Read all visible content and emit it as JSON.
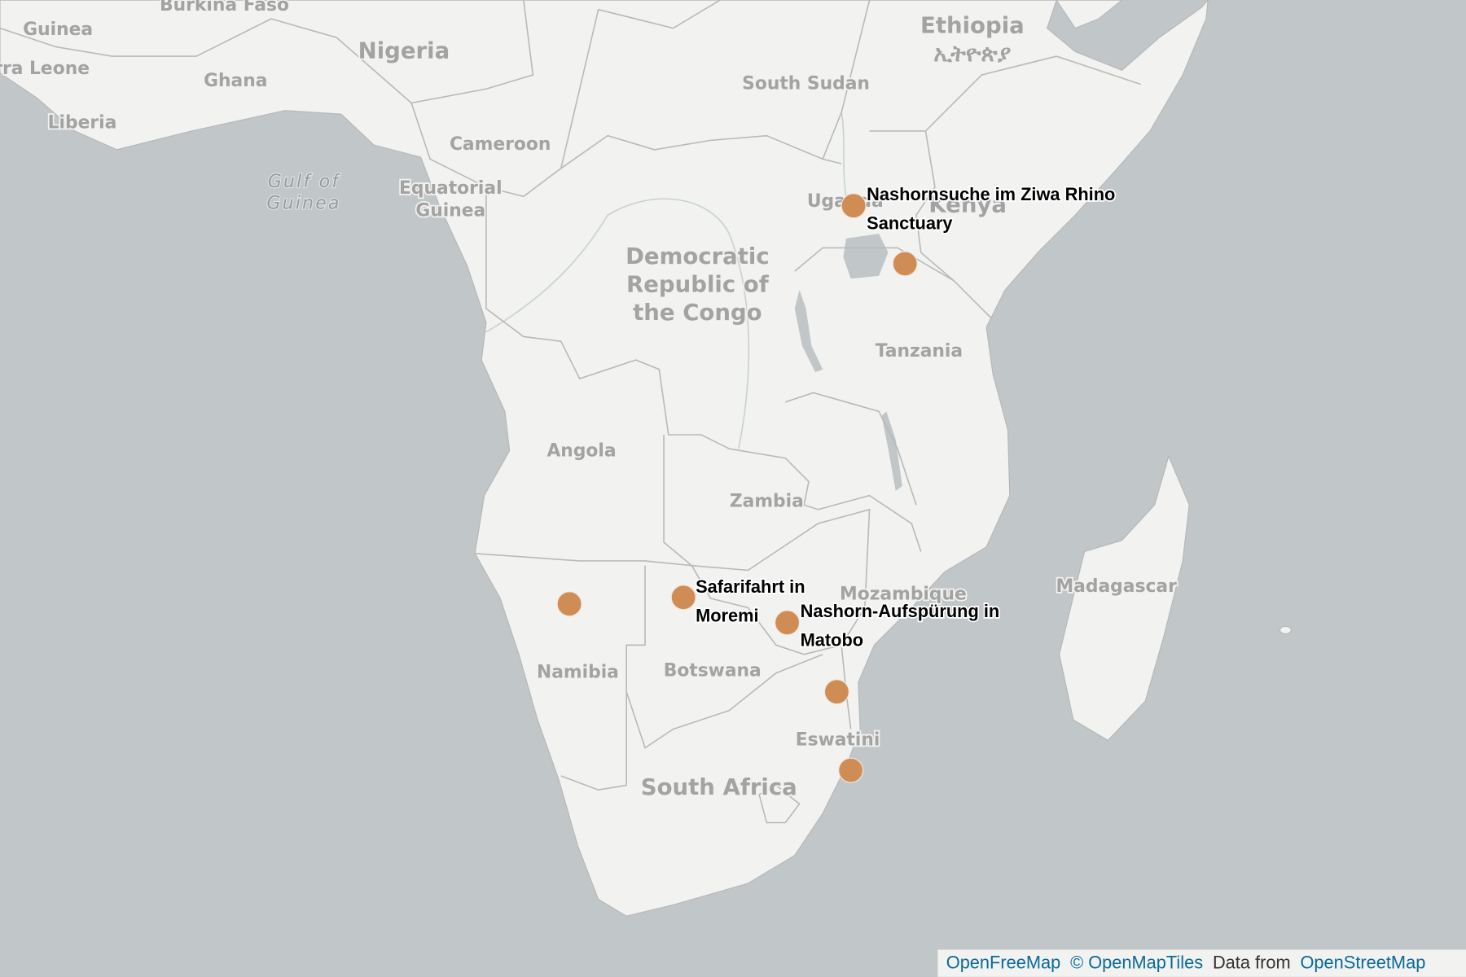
{
  "map": {
    "country_labels": [
      {
        "lines": [
          "Guinea"
        ]
      },
      {
        "lines": [
          "Sierra Leone"
        ]
      },
      {
        "lines": [
          "Burkina Faso"
        ]
      },
      {
        "lines": [
          "Ghana"
        ]
      },
      {
        "lines": [
          "Liberia"
        ]
      },
      {
        "lines": [
          "Nigeria"
        ]
      },
      {
        "lines": [
          "Cameroon"
        ]
      },
      {
        "lines": [
          "Equatorial",
          "Guinea"
        ]
      },
      {
        "lines": [
          "South Sudan"
        ]
      },
      {
        "lines": [
          "Ethiopia",
          "ኢትዮጵያ"
        ]
      },
      {
        "lines": [
          "Uganda"
        ]
      },
      {
        "lines": [
          "Kenya"
        ]
      },
      {
        "lines": [
          "Democratic",
          "Republic of",
          "the Congo"
        ]
      },
      {
        "lines": [
          "Tanzania"
        ]
      },
      {
        "lines": [
          "Angola"
        ]
      },
      {
        "lines": [
          "Zambia"
        ]
      },
      {
        "lines": [
          "Mozambique"
        ]
      },
      {
        "lines": [
          "Madagascar"
        ]
      },
      {
        "lines": [
          "Namibia"
        ]
      },
      {
        "lines": [
          "Botswana"
        ]
      },
      {
        "lines": [
          "Eswatini"
        ]
      },
      {
        "lines": [
          "South Africa"
        ]
      }
    ],
    "water_labels": [
      {
        "lines": [
          "Gulf of",
          "Guinea"
        ]
      }
    ],
    "markers": [
      {
        "label": [
          "Nashornsuche im Ziwa Rhino",
          "Sanctuary"
        ]
      },
      {
        "label": [
          "Safarifahrt in",
          "Moremi"
        ]
      },
      {
        "label": [
          "Nashorn-Aufspürung in",
          "Matobo"
        ]
      }
    ],
    "attribution": [
      "OpenFreeMap",
      "© OpenMapTiles",
      "Data from",
      "OpenStreetMap"
    ]
  }
}
